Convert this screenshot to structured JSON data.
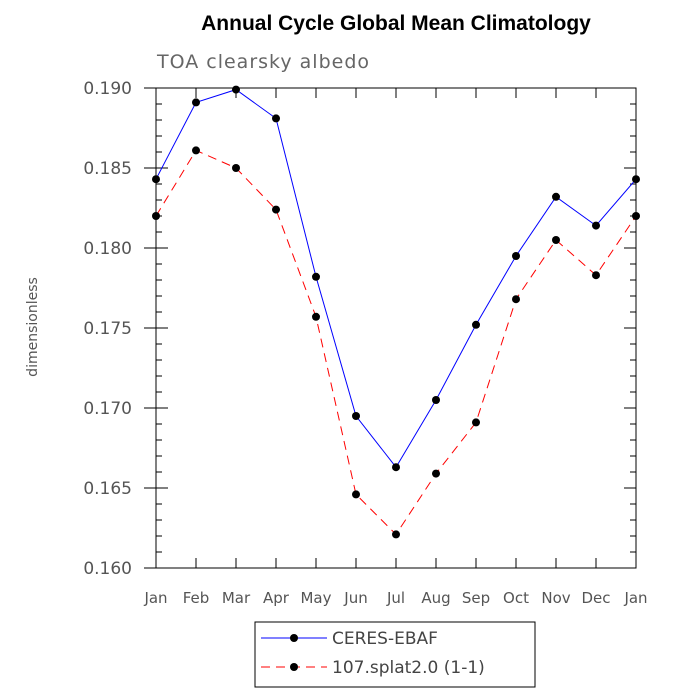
{
  "chart_data": {
    "type": "line",
    "title": "Annual Cycle Global Mean Climatology",
    "subtitle": "TOA clearsky albedo",
    "ylabel": "dimensionless",
    "xlabel": "",
    "categories": [
      "Jan",
      "Feb",
      "Mar",
      "Apr",
      "May",
      "Jun",
      "Jul",
      "Aug",
      "Sep",
      "Oct",
      "Nov",
      "Dec",
      "Jan"
    ],
    "ylim": [
      0.16,
      0.19
    ],
    "yticks": [
      "0.160",
      "0.165",
      "0.170",
      "0.175",
      "0.180",
      "0.185",
      "0.190"
    ],
    "grid": false,
    "legend_position": "bottom",
    "series": [
      {
        "name": "CERES-EBAF",
        "color": "#0000ff",
        "dash": "solid",
        "marker": "circle",
        "values": [
          0.1843,
          0.1891,
          0.1899,
          0.1881,
          0.1782,
          0.1695,
          0.1663,
          0.1705,
          0.1752,
          0.1795,
          0.1832,
          0.1814,
          0.1843
        ]
      },
      {
        "name": "107.splat2.0 (1-1)",
        "color": "#ff0000",
        "dash": "dashed",
        "marker": "circle",
        "values": [
          0.182,
          0.1861,
          0.185,
          0.1824,
          0.1757,
          0.1646,
          0.1621,
          0.1659,
          0.1691,
          0.1768,
          0.1805,
          0.1783,
          0.182
        ]
      }
    ]
  }
}
